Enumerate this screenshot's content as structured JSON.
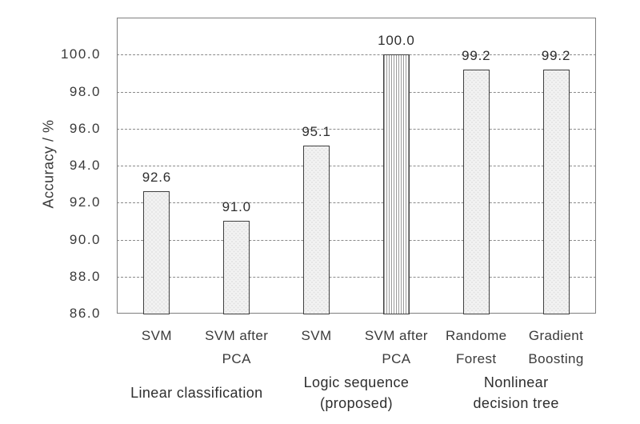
{
  "chart_data": {
    "type": "bar",
    "title": "",
    "xlabel": "",
    "ylabel": "Accuracy / %",
    "ylim": [
      86,
      102
    ],
    "ytick_values": [
      86,
      88,
      90,
      92,
      94,
      96,
      98,
      100
    ],
    "ytick_labels": [
      "86.0",
      "88.0",
      "90.0",
      "92.0",
      "94.0",
      "96.0",
      "98.0",
      "100.0"
    ],
    "grid": "horizontal-dashed",
    "legend": "none",
    "categories": [
      "SVM",
      "SVM after PCA",
      "SVM",
      "SVM after PCA",
      "Randome Forest",
      "Gradient Boosting"
    ],
    "category_lines": [
      [
        "SVM"
      ],
      [
        "SVM after",
        "PCA"
      ],
      [
        "SVM"
      ],
      [
        "SVM after",
        "PCA"
      ],
      [
        "Randome",
        "Forest"
      ],
      [
        "Gradient",
        "Boosting"
      ]
    ],
    "values": [
      92.6,
      91.0,
      95.1,
      100.0,
      99.2,
      99.2
    ],
    "data_labels": [
      "92.6",
      "91.0",
      "95.1",
      "100.0",
      "99.2",
      "99.2"
    ],
    "bar_patterns": [
      "dots",
      "dots",
      "dots",
      "vertical-lines",
      "dots",
      "dots"
    ],
    "emphasized_bar_index": 3,
    "groups": [
      {
        "label": "Linear classification",
        "lines": [
          "Linear classification"
        ],
        "bar_indices": [
          0,
          1
        ]
      },
      {
        "label": "Logic sequence (proposed)",
        "lines": [
          "Logic sequence",
          "(proposed)"
        ],
        "bar_indices": [
          2,
          3
        ]
      },
      {
        "label": "Nonlinear decision tree",
        "lines": [
          "Nonlinear",
          "decision tree"
        ],
        "bar_indices": [
          4,
          5
        ]
      }
    ],
    "colors": {
      "background": "#ffffff",
      "text": "#3a3a3a",
      "axis_border": "#7f7f7f",
      "grid_color": "#8a8a8a",
      "bar_fill": "#f2f2f2",
      "bar_dot": "#e1e1e1",
      "bar_border": "#404040",
      "emphasized_fill": "#ffffff",
      "emphasized_stripe": "#9a9a9a"
    }
  }
}
